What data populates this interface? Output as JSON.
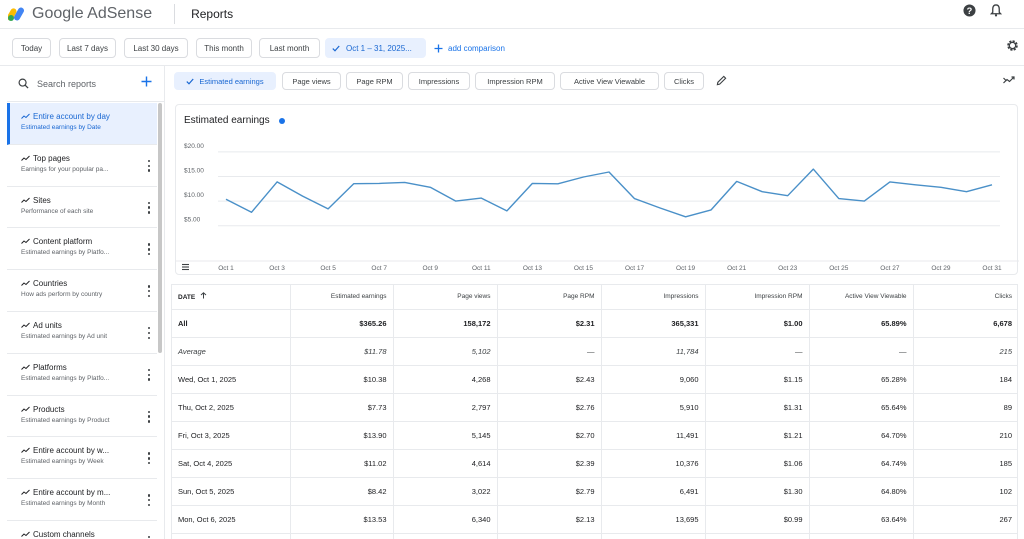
{
  "app": {
    "brand": "Google AdSense",
    "page_title": "Reports"
  },
  "date_chips": [
    "Today",
    "Last 7 days",
    "Last 30 days",
    "This month",
    "Last month"
  ],
  "date_range": "Oct 1 – 31, 2025...",
  "add_comparison": "add comparison",
  "search": {
    "placeholder": "Search reports"
  },
  "reports": [
    {
      "title": "Entire account by day",
      "subtitle": "Estimated earnings by Date"
    },
    {
      "title": "Top pages",
      "subtitle": "Earnings for your popular pa..."
    },
    {
      "title": "Sites",
      "subtitle": "Performance of each site"
    },
    {
      "title": "Content platform",
      "subtitle": "Estimated earnings by Platfo..."
    },
    {
      "title": "Countries",
      "subtitle": "How ads perform by country"
    },
    {
      "title": "Ad units",
      "subtitle": "Estimated earnings by Ad unit"
    },
    {
      "title": "Platforms",
      "subtitle": "Estimated earnings by Platfo..."
    },
    {
      "title": "Products",
      "subtitle": "Estimated earnings by Product"
    },
    {
      "title": "Entire account by w...",
      "subtitle": "Estimated earnings by Week"
    },
    {
      "title": "Entire account by m...",
      "subtitle": "Estimated earnings by Month"
    },
    {
      "title": "Custom channels",
      "subtitle": ""
    }
  ],
  "metrics": [
    "Estimated earnings",
    "Page views",
    "Page RPM",
    "Impressions",
    "Impression RPM",
    "Active View Viewable",
    "Clicks"
  ],
  "chart": {
    "title": "Estimated earnings"
  },
  "colors": {
    "accent": "#1a73e8",
    "line": "#4a90c8",
    "selected_bg": "#e8f0fe"
  },
  "chart_data": {
    "type": "line",
    "title": "Estimated earnings",
    "xlabel": "",
    "ylabel": "",
    "ylim": [
      2.5,
      22
    ],
    "yticks": [
      "$5.00",
      "$10.00",
      "$15.00",
      "$20.00"
    ],
    "ytick_values": [
      5,
      10,
      15,
      20
    ],
    "xtick_labels": [
      "Oct 1",
      "Oct 3",
      "Oct 5",
      "Oct 7",
      "Oct 9",
      "Oct 11",
      "Oct 13",
      "Oct 15",
      "Oct 17",
      "Oct 19",
      "Oct 21",
      "Oct 23",
      "Oct 25",
      "Oct 27",
      "Oct 29",
      "Oct 31"
    ],
    "x": [
      "Oct 1",
      "Oct 2",
      "Oct 3",
      "Oct 4",
      "Oct 5",
      "Oct 6",
      "Oct 7",
      "Oct 8",
      "Oct 9",
      "Oct 10",
      "Oct 11",
      "Oct 12",
      "Oct 13",
      "Oct 14",
      "Oct 15",
      "Oct 16",
      "Oct 17",
      "Oct 18",
      "Oct 19",
      "Oct 20",
      "Oct 21",
      "Oct 22",
      "Oct 23",
      "Oct 24",
      "Oct 25",
      "Oct 26",
      "Oct 27",
      "Oct 28",
      "Oct 29",
      "Oct 30",
      "Oct 31"
    ],
    "series": [
      {
        "values": [
          10.38,
          7.73,
          13.9,
          11.02,
          8.42,
          13.53,
          13.6,
          13.8,
          12.8,
          10.0,
          10.6,
          8.0,
          13.6,
          13.5,
          14.9,
          15.9,
          10.5,
          8.6,
          6.8,
          8.2,
          14.0,
          11.9,
          11.1,
          16.5,
          10.5,
          10.0,
          13.9,
          13.3,
          12.8,
          11.9,
          13.3
        ]
      }
    ],
    "grid": true
  },
  "table": {
    "headers": [
      "DATE",
      "Estimated earnings",
      "Page views",
      "Page RPM",
      "Impressions",
      "Impression RPM",
      "Active View Viewable",
      "Clicks"
    ],
    "total": [
      "All",
      "$365.26",
      "158,172",
      "$2.31",
      "365,331",
      "$1.00",
      "65.89%",
      "6,678"
    ],
    "average": [
      "Average",
      "$11.78",
      "5,102",
      "—",
      "11,784",
      "—",
      "—",
      "215"
    ],
    "rows": [
      [
        "Wed, Oct 1, 2025",
        "$10.38",
        "4,268",
        "$2.43",
        "9,060",
        "$1.15",
        "65.28%",
        "184"
      ],
      [
        "Thu, Oct 2, 2025",
        "$7.73",
        "2,797",
        "$2.76",
        "5,910",
        "$1.31",
        "65.64%",
        "89"
      ],
      [
        "Fri, Oct 3, 2025",
        "$13.90",
        "5,145",
        "$2.70",
        "11,491",
        "$1.21",
        "64.70%",
        "210"
      ],
      [
        "Sat, Oct 4, 2025",
        "$11.02",
        "4,614",
        "$2.39",
        "10,376",
        "$1.06",
        "64.74%",
        "185"
      ],
      [
        "Sun, Oct 5, 2025",
        "$8.42",
        "3,022",
        "$2.79",
        "6,491",
        "$1.30",
        "64.80%",
        "102"
      ],
      [
        "Mon, Oct 6, 2025",
        "$13.53",
        "6,340",
        "$2.13",
        "13,695",
        "$0.99",
        "63.64%",
        "267"
      ],
      [
        "",
        "",
        "",
        "",
        "",
        "",
        "",
        ""
      ]
    ]
  }
}
